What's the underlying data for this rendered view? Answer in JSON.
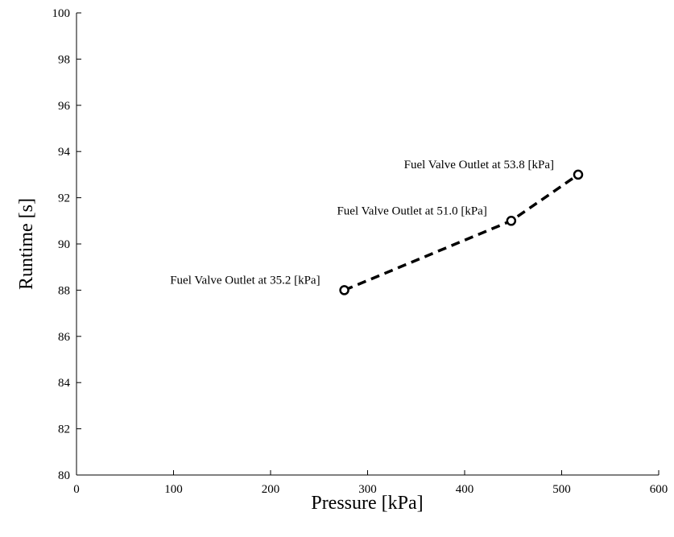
{
  "chart_data": {
    "type": "line",
    "title": "",
    "xlabel": "Pressure [kPa]",
    "ylabel": "Runtime [s]",
    "xlim": [
      0,
      600
    ],
    "ylim": [
      80,
      100
    ],
    "xticks": [
      0,
      100,
      200,
      300,
      400,
      500,
      600
    ],
    "yticks": [
      80,
      82,
      84,
      86,
      88,
      90,
      92,
      94,
      96,
      98,
      100
    ],
    "grid": false,
    "line_style": "dashed",
    "marker": "circle",
    "color": "#000000",
    "series": [
      {
        "x": [
          276,
          448,
          517
        ],
        "y": [
          88,
          91,
          93
        ]
      }
    ],
    "annotations": [
      {
        "text": "Fuel Valve Outlet at 35.2 [kPa]",
        "x": 276,
        "y": 88
      },
      {
        "text": "Fuel Valve Outlet at 51.0 [kPa]",
        "x": 448,
        "y": 91
      },
      {
        "text": "Fuel Valve Outlet at 53.8 [kPa]",
        "x": 517,
        "y": 93
      }
    ]
  }
}
